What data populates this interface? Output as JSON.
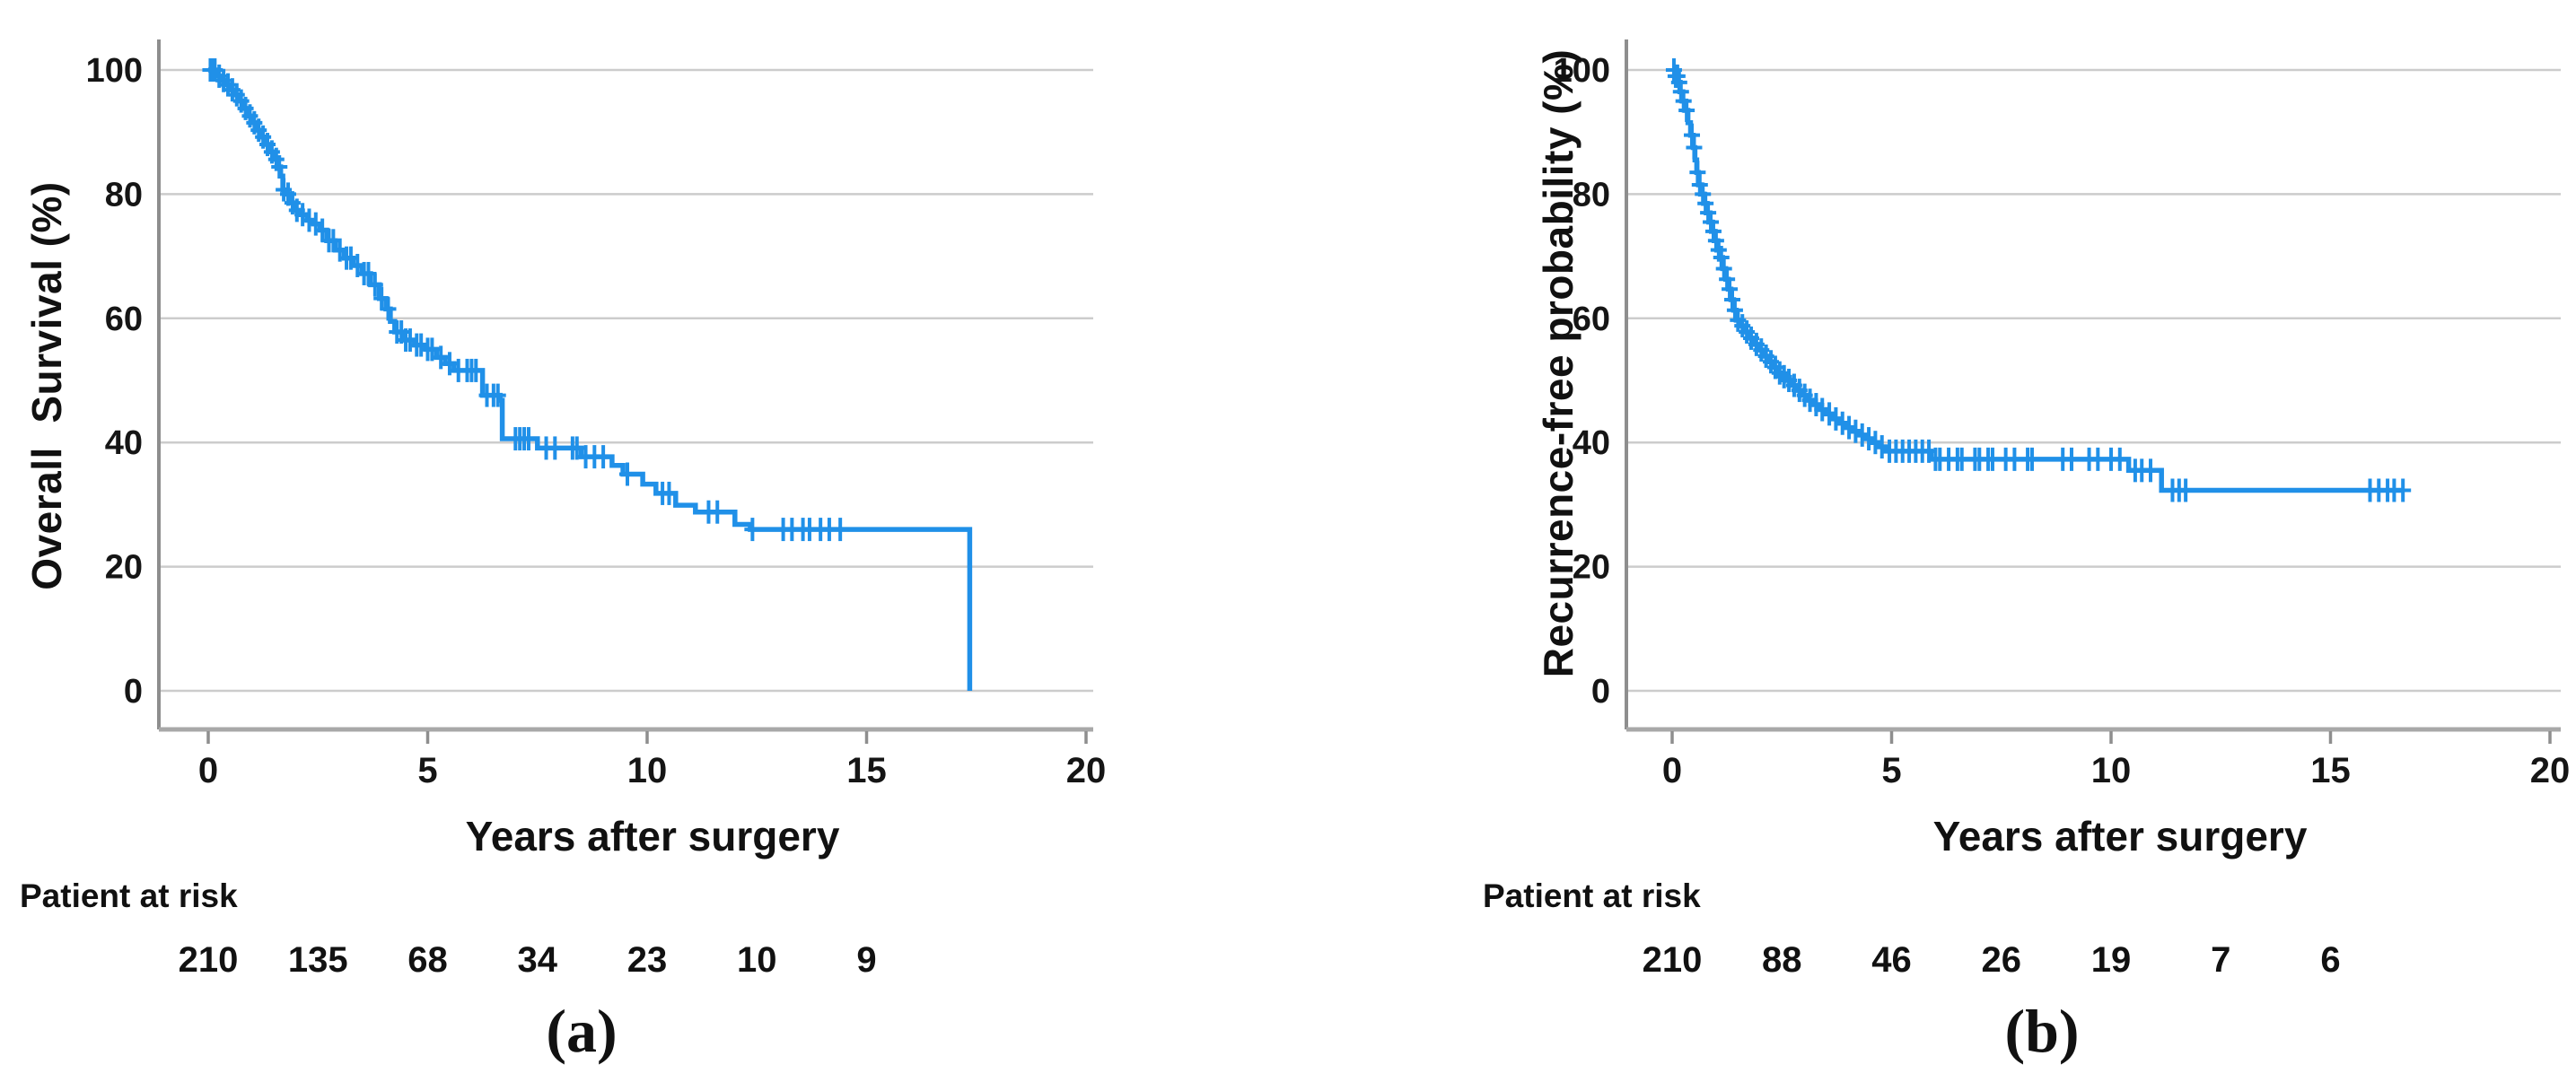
{
  "figure": {
    "background": "#ffffff",
    "panels": [
      {
        "tag": "(a)",
        "y_axis_label": "Overall  Survival (%)",
        "x_axis_label": "Years after surgery",
        "at_risk_label": "Patient at risk"
      },
      {
        "tag": "(b)",
        "y_axis_label": "Recurrence-free probability (%)",
        "x_axis_label": "Years after surgery",
        "at_risk_label": "Patient at risk"
      }
    ]
  },
  "chart_data": [
    {
      "type": "line",
      "subtype": "kaplan-meier-step",
      "title": "",
      "xlabel": "Years after surgery",
      "ylabel": "Overall  Survival (%)",
      "xlim": [
        0,
        20
      ],
      "ylim": [
        0,
        100
      ],
      "x_ticks": [
        0,
        5,
        10,
        15,
        20
      ],
      "y_ticks": [
        0,
        20,
        40,
        60,
        80,
        100
      ],
      "grid": "horizontal",
      "legend": "none",
      "line_color": "#2090e8",
      "grid_color": "#cccccc",
      "axis_color": "#8e8e8e",
      "border_color": "#a8a8a8",
      "series": [
        {
          "name": "Overall survival",
          "steps": [
            [
              0,
              100
            ],
            [
              0.2,
              99
            ],
            [
              0.3,
              98.3
            ],
            [
              0.4,
              97.6
            ],
            [
              0.5,
              96.8
            ],
            [
              0.6,
              96
            ],
            [
              0.7,
              95
            ],
            [
              0.8,
              93.8
            ],
            [
              0.9,
              92.6
            ],
            [
              1,
              91.5
            ],
            [
              1.1,
              90.3
            ],
            [
              1.2,
              89.2
            ],
            [
              1.3,
              88
            ],
            [
              1.4,
              86.8
            ],
            [
              1.5,
              85.6
            ],
            [
              1.6,
              84.4
            ],
            [
              1.65,
              82.9
            ],
            [
              1.7,
              80.7
            ],
            [
              1.78,
              80
            ],
            [
              1.9,
              78.6
            ],
            [
              2,
              77.4
            ],
            [
              2.1,
              76.7
            ],
            [
              2.25,
              75.8
            ],
            [
              2.4,
              75.2
            ],
            [
              2.55,
              74.2
            ],
            [
              2.7,
              72.5
            ],
            [
              2.9,
              71
            ],
            [
              3.1,
              69.7
            ],
            [
              3.3,
              68.5
            ],
            [
              3.5,
              67.2
            ],
            [
              3.7,
              65.4
            ],
            [
              3.9,
              63.2
            ],
            [
              4.05,
              61.5
            ],
            [
              4.15,
              59.5
            ],
            [
              4.25,
              57.8
            ],
            [
              4.45,
              56.5
            ],
            [
              4.7,
              55.7
            ],
            [
              4.95,
              55
            ],
            [
              5.2,
              53.7
            ],
            [
              5.4,
              52.7
            ],
            [
              5.6,
              51.6
            ],
            [
              6.25,
              47.6
            ],
            [
              6.65,
              46.8
            ],
            [
              6.7,
              40.6
            ],
            [
              7.5,
              39.1
            ],
            [
              8.5,
              37.7
            ],
            [
              9.2,
              36.3
            ],
            [
              9.45,
              34.9
            ],
            [
              9.9,
              33.3
            ],
            [
              10.2,
              31.8
            ],
            [
              10.65,
              29.9
            ],
            [
              11.1,
              28.8
            ],
            [
              12,
              26.8
            ],
            [
              12.35,
              26
            ],
            [
              17.35,
              26
            ],
            [
              17.35,
              0
            ]
          ],
          "censor_x": [
            0.05,
            0.1,
            0.15,
            0.25,
            0.35,
            0.45,
            0.55,
            0.65,
            0.75,
            0.85,
            0.95,
            1.05,
            1.15,
            1.25,
            1.35,
            1.45,
            1.55,
            1.62,
            1.72,
            1.82,
            1.92,
            2.02,
            2.15,
            2.3,
            2.45,
            2.6,
            2.75,
            2.85,
            3,
            3.15,
            3.25,
            3.4,
            3.55,
            3.65,
            3.8,
            3.95,
            4.1,
            4.3,
            4.4,
            4.5,
            4.6,
            4.75,
            4.85,
            5,
            5.1,
            5.3,
            5.5,
            5.7,
            5.9,
            6,
            6.1,
            6.35,
            6.5,
            6.6,
            7,
            7.1,
            7.2,
            7.3,
            7.7,
            7.9,
            8.3,
            8.4,
            8.6,
            8.8,
            9,
            9.55,
            10.35,
            10.5,
            11.4,
            11.6,
            12.4,
            13.1,
            13.3,
            13.55,
            13.7,
            13.95,
            14.15,
            14.4
          ]
        }
      ],
      "at_risk": {
        "label": "Patient at risk",
        "times": [
          0,
          2.5,
          5,
          7.5,
          10,
          12.5,
          15
        ],
        "counts": [
          "210",
          "135",
          "68",
          "34",
          "23",
          "10",
          "9"
        ]
      },
      "panel_tag": "(a)"
    },
    {
      "type": "line",
      "subtype": "kaplan-meier-step",
      "title": "",
      "xlabel": "Years after surgery",
      "ylabel": "Recurrence-free probability (%)",
      "xlim": [
        0,
        20
      ],
      "ylim": [
        0,
        100
      ],
      "x_ticks": [
        0,
        5,
        10,
        15,
        20
      ],
      "y_ticks": [
        0,
        20,
        40,
        60,
        80,
        100
      ],
      "grid": "horizontal",
      "legend": "none",
      "line_color": "#2090e8",
      "grid_color": "#cccccc",
      "axis_color": "#8e8e8e",
      "border_color": "#a8a8a8",
      "series": [
        {
          "name": "Recurrence-free probability",
          "steps": [
            [
              0,
              100
            ],
            [
              0.08,
              99
            ],
            [
              0.13,
              98
            ],
            [
              0.18,
              96.5
            ],
            [
              0.24,
              95
            ],
            [
              0.3,
              93.5
            ],
            [
              0.36,
              91.5
            ],
            [
              0.42,
              89.5
            ],
            [
              0.48,
              87.5
            ],
            [
              0.52,
              85.5
            ],
            [
              0.56,
              83.5
            ],
            [
              0.6,
              81.5
            ],
            [
              0.65,
              80
            ],
            [
              0.72,
              78.5
            ],
            [
              0.78,
              77
            ],
            [
              0.84,
              75.5
            ],
            [
              0.9,
              74
            ],
            [
              0.96,
              72.5
            ],
            [
              1.02,
              71
            ],
            [
              1.08,
              69.8
            ],
            [
              1.15,
              68
            ],
            [
              1.22,
              66.3
            ],
            [
              1.28,
              64.7
            ],
            [
              1.34,
              63
            ],
            [
              1.4,
              61.3
            ],
            [
              1.46,
              59.7
            ],
            [
              1.56,
              58.8
            ],
            [
              1.66,
              57.8
            ],
            [
              1.76,
              56.8
            ],
            [
              1.87,
              55.8
            ],
            [
              1.98,
              54.9
            ],
            [
              2.09,
              53.9
            ],
            [
              2.2,
              53
            ],
            [
              2.3,
              52.1
            ],
            [
              2.4,
              51.2
            ],
            [
              2.5,
              50.6
            ],
            [
              2.6,
              50
            ],
            [
              2.72,
              49.2
            ],
            [
              2.84,
              48.4
            ],
            [
              2.96,
              47.6
            ],
            [
              3.08,
              46.8
            ],
            [
              3.2,
              46.1
            ],
            [
              3.35,
              45.3
            ],
            [
              3.5,
              44.6
            ],
            [
              3.65,
              43.8
            ],
            [
              3.8,
              43.1
            ],
            [
              3.95,
              42.4
            ],
            [
              4.1,
              41.8
            ],
            [
              4.25,
              41.2
            ],
            [
              4.4,
              40.6
            ],
            [
              4.55,
              40
            ],
            [
              4.7,
              39.3
            ],
            [
              4.85,
              38.6
            ],
            [
              5.9,
              37.3
            ],
            [
              10.4,
              35.5
            ],
            [
              11.15,
              32.3
            ],
            [
              16.65,
              32.3
            ]
          ],
          "censor_x": [
            0.04,
            0.08,
            0.12,
            0.16,
            0.2,
            0.26,
            0.33,
            0.45,
            0.5,
            0.58,
            0.63,
            0.7,
            0.76,
            0.82,
            0.88,
            0.94,
            1,
            1.06,
            1.12,
            1.18,
            1.25,
            1.31,
            1.37,
            1.43,
            1.5,
            1.6,
            1.7,
            1.8,
            1.92,
            2.03,
            2.14,
            2.25,
            2.35,
            2.45,
            2.55,
            2.66,
            2.78,
            2.9,
            3.02,
            3.14,
            3.28,
            3.42,
            3.58,
            3.73,
            3.88,
            4.03,
            4.18,
            4.33,
            4.48,
            4.63,
            4.78,
            4.95,
            5.1,
            5.25,
            5.4,
            5.55,
            5.7,
            5.85,
            6,
            6.1,
            6.3,
            6.5,
            6.6,
            6.9,
            7,
            7.2,
            7.3,
            7.6,
            7.8,
            8.1,
            8.2,
            8.9,
            9.1,
            9.5,
            9.7,
            10,
            10.2,
            10.55,
            10.7,
            10.9,
            11.4,
            11.55,
            11.7,
            15.9,
            16.1,
            16.3,
            16.45,
            16.65
          ]
        }
      ],
      "at_risk": {
        "label": "Patient at risk",
        "times": [
          0,
          2.5,
          5,
          7.5,
          10,
          12.5,
          15
        ],
        "counts": [
          "210",
          "88",
          "46",
          "26",
          "19",
          "7",
          "6"
        ]
      },
      "panel_tag": "(b)"
    }
  ]
}
